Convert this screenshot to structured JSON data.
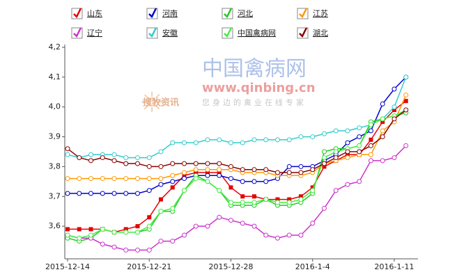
{
  "chart_data": {
    "type": "line",
    "categories": [
      "2015-12-14",
      null,
      null,
      null,
      null,
      null,
      null,
      "2015-12-21",
      null,
      null,
      null,
      null,
      null,
      null,
      "2015-12-28",
      null,
      null,
      null,
      null,
      null,
      null,
      "2016-1-4",
      null,
      null,
      null,
      null,
      null,
      null,
      "2016-1-11",
      null
    ],
    "ylim": [
      3.5,
      4.2
    ],
    "yticks": [
      {
        "value": 3.6,
        "label": "3,6"
      },
      {
        "value": 3.7,
        "label": "3,7"
      },
      {
        "value": 3.8,
        "label": "3,8"
      },
      {
        "value": 3.9,
        "label": "3,9"
      },
      {
        "value": 4.0,
        "label": "4,0"
      },
      {
        "value": 4.1,
        "label": "4,1"
      },
      {
        "value": 4.2,
        "label": "4,2"
      }
    ],
    "grid": false,
    "watermark": {
      "site": "中国禽病网",
      "url": "www.qinbing.cn",
      "brand": "搜牧资讯",
      "slogan": "您身边的禽业在线专家"
    },
    "series": [
      {
        "name": "山东",
        "color": "#e60000",
        "marker": "square",
        "values": [
          3.59,
          3.59,
          3.59,
          3.59,
          3.58,
          3.59,
          3.6,
          3.63,
          3.69,
          3.73,
          3.77,
          3.78,
          3.78,
          3.78,
          3.73,
          3.7,
          3.7,
          3.69,
          3.69,
          3.69,
          3.7,
          3.73,
          3.8,
          3.82,
          3.84,
          3.84,
          3.89,
          3.95,
          3.99,
          4.02
        ]
      },
      {
        "name": "河南",
        "color": "#0000cc",
        "marker": "circle",
        "values": [
          3.71,
          3.71,
          3.71,
          3.71,
          3.71,
          3.71,
          3.71,
          3.72,
          3.74,
          3.75,
          3.76,
          3.77,
          3.77,
          3.77,
          3.76,
          3.75,
          3.75,
          3.75,
          3.76,
          3.8,
          3.8,
          3.8,
          3.82,
          3.84,
          3.88,
          3.9,
          3.92,
          4.01,
          4.06,
          4.1
        ]
      },
      {
        "name": "河北",
        "color": "#22cc22",
        "marker": "circle",
        "values": [
          3.56,
          3.55,
          3.56,
          3.59,
          3.58,
          3.58,
          3.58,
          3.59,
          3.65,
          3.65,
          3.72,
          3.77,
          3.75,
          3.72,
          3.67,
          3.67,
          3.67,
          3.69,
          3.67,
          3.67,
          3.68,
          3.71,
          3.85,
          3.86,
          3.86,
          3.87,
          3.95,
          3.96,
          3.97,
          3.98
        ]
      },
      {
        "name": "江苏",
        "color": "#ff9900",
        "marker": "circle",
        "values": [
          3.76,
          3.76,
          3.76,
          3.76,
          3.76,
          3.76,
          3.76,
          3.76,
          3.76,
          3.77,
          3.78,
          3.79,
          3.79,
          3.79,
          3.79,
          3.78,
          3.78,
          3.78,
          3.77,
          3.77,
          3.77,
          3.78,
          3.81,
          3.82,
          3.83,
          3.84,
          3.84,
          3.92,
          3.95,
          4.04
        ]
      },
      {
        "name": "辽宁",
        "color": "#cc33cc",
        "marker": "circle",
        "values": [
          3.57,
          3.56,
          3.56,
          3.54,
          3.53,
          3.52,
          3.52,
          3.52,
          3.55,
          3.55,
          3.57,
          3.6,
          3.6,
          3.63,
          3.62,
          3.61,
          3.6,
          3.57,
          3.56,
          3.57,
          3.57,
          3.61,
          3.66,
          3.72,
          3.74,
          3.75,
          3.82,
          3.82,
          3.83,
          3.87
        ]
      },
      {
        "name": "安徽",
        "color": "#33cccc",
        "marker": "circle",
        "values": [
          3.84,
          3.83,
          3.84,
          3.84,
          3.84,
          3.83,
          3.83,
          3.83,
          3.85,
          3.88,
          3.88,
          3.88,
          3.89,
          3.89,
          3.88,
          3.88,
          3.89,
          3.89,
          3.89,
          3.89,
          3.9,
          3.9,
          3.91,
          3.92,
          3.92,
          3.93,
          3.94,
          3.96,
          4.0,
          4.1
        ]
      },
      {
        "name": "中国禽病网",
        "color": "#44ee44",
        "marker": "circle",
        "values": [
          3.57,
          3.56,
          3.57,
          3.59,
          3.58,
          3.58,
          3.58,
          3.6,
          3.65,
          3.66,
          3.72,
          3.76,
          3.75,
          3.72,
          3.68,
          3.68,
          3.68,
          3.69,
          3.68,
          3.68,
          3.69,
          3.72,
          3.83,
          3.85,
          3.86,
          3.87,
          3.94,
          3.96,
          3.97,
          3.99
        ]
      },
      {
        "name": "湖北",
        "color": "#880000",
        "marker": "circle",
        "values": [
          3.86,
          3.83,
          3.82,
          3.83,
          3.82,
          3.81,
          3.81,
          3.8,
          3.8,
          3.81,
          3.81,
          3.81,
          3.81,
          3.81,
          3.8,
          3.79,
          3.79,
          3.79,
          3.78,
          3.78,
          3.78,
          3.79,
          3.81,
          3.83,
          3.85,
          3.85,
          3.87,
          3.9,
          3.96,
          3.99
        ]
      }
    ]
  }
}
